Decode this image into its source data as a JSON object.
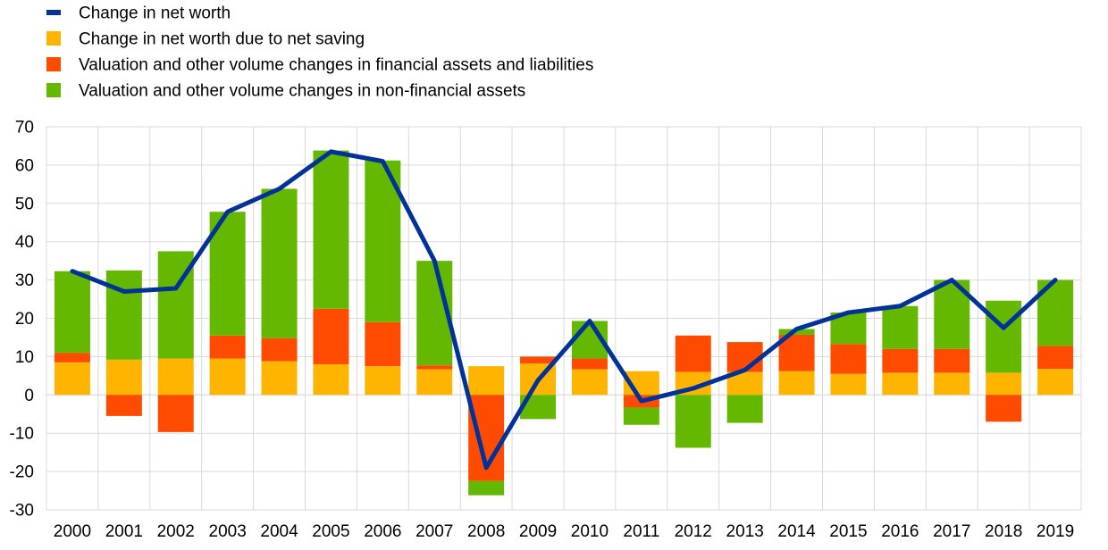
{
  "chart_data": {
    "type": "bar",
    "stacked": true,
    "categories": [
      "2000",
      "2001",
      "2002",
      "2003",
      "2004",
      "2005",
      "2006",
      "2007",
      "2008",
      "2009",
      "2010",
      "2011",
      "2012",
      "2013",
      "2014",
      "2015",
      "2016",
      "2017",
      "2018",
      "2019"
    ],
    "ylim": [
      -30,
      70
    ],
    "yticks": [
      -30,
      -20,
      -10,
      0,
      10,
      20,
      30,
      40,
      50,
      60,
      70
    ],
    "grid": true,
    "legend_position": "top-left",
    "series": [
      {
        "name": "Change in net worth due to net saving",
        "type": "bar",
        "color": "#ffb400",
        "values": [
          8.5,
          9.2,
          9.5,
          9.5,
          8.8,
          8.0,
          7.5,
          6.7,
          7.5,
          8.2,
          6.7,
          6.2,
          6.0,
          6.0,
          6.2,
          5.5,
          5.8,
          5.8,
          5.8,
          6.8
        ]
      },
      {
        "name": "Valuation and other volume changes in financial assets and liabilities",
        "type": "bar",
        "color": "#ff4b00",
        "values": [
          2.5,
          -5.5,
          -9.7,
          6.0,
          6.0,
          14.5,
          11.5,
          1.0,
          -22.5,
          1.8,
          2.8,
          -3.3,
          9.5,
          7.8,
          9.5,
          7.8,
          6.2,
          6.2,
          -7.0,
          6.0
        ]
      },
      {
        "name": "Valuation and other volume changes in non-financial assets",
        "type": "bar",
        "color": "#65b800",
        "values": [
          21.3,
          23.3,
          28.0,
          32.3,
          39.0,
          41.3,
          42.2,
          27.3,
          -3.7,
          -6.3,
          9.8,
          -4.5,
          -13.8,
          -7.3,
          1.5,
          8.2,
          11.2,
          18.0,
          18.8,
          17.2
        ]
      },
      {
        "name": "Change in net worth",
        "type": "line",
        "color": "#003299",
        "values": [
          32.3,
          27.0,
          27.8,
          47.8,
          53.8,
          63.5,
          61.0,
          35.0,
          -19.0,
          3.8,
          19.3,
          -1.6,
          1.7,
          6.5,
          17.2,
          21.5,
          23.2,
          30.0,
          17.5,
          30.0
        ]
      }
    ],
    "legend_order": [
      3,
      0,
      1,
      2
    ]
  }
}
